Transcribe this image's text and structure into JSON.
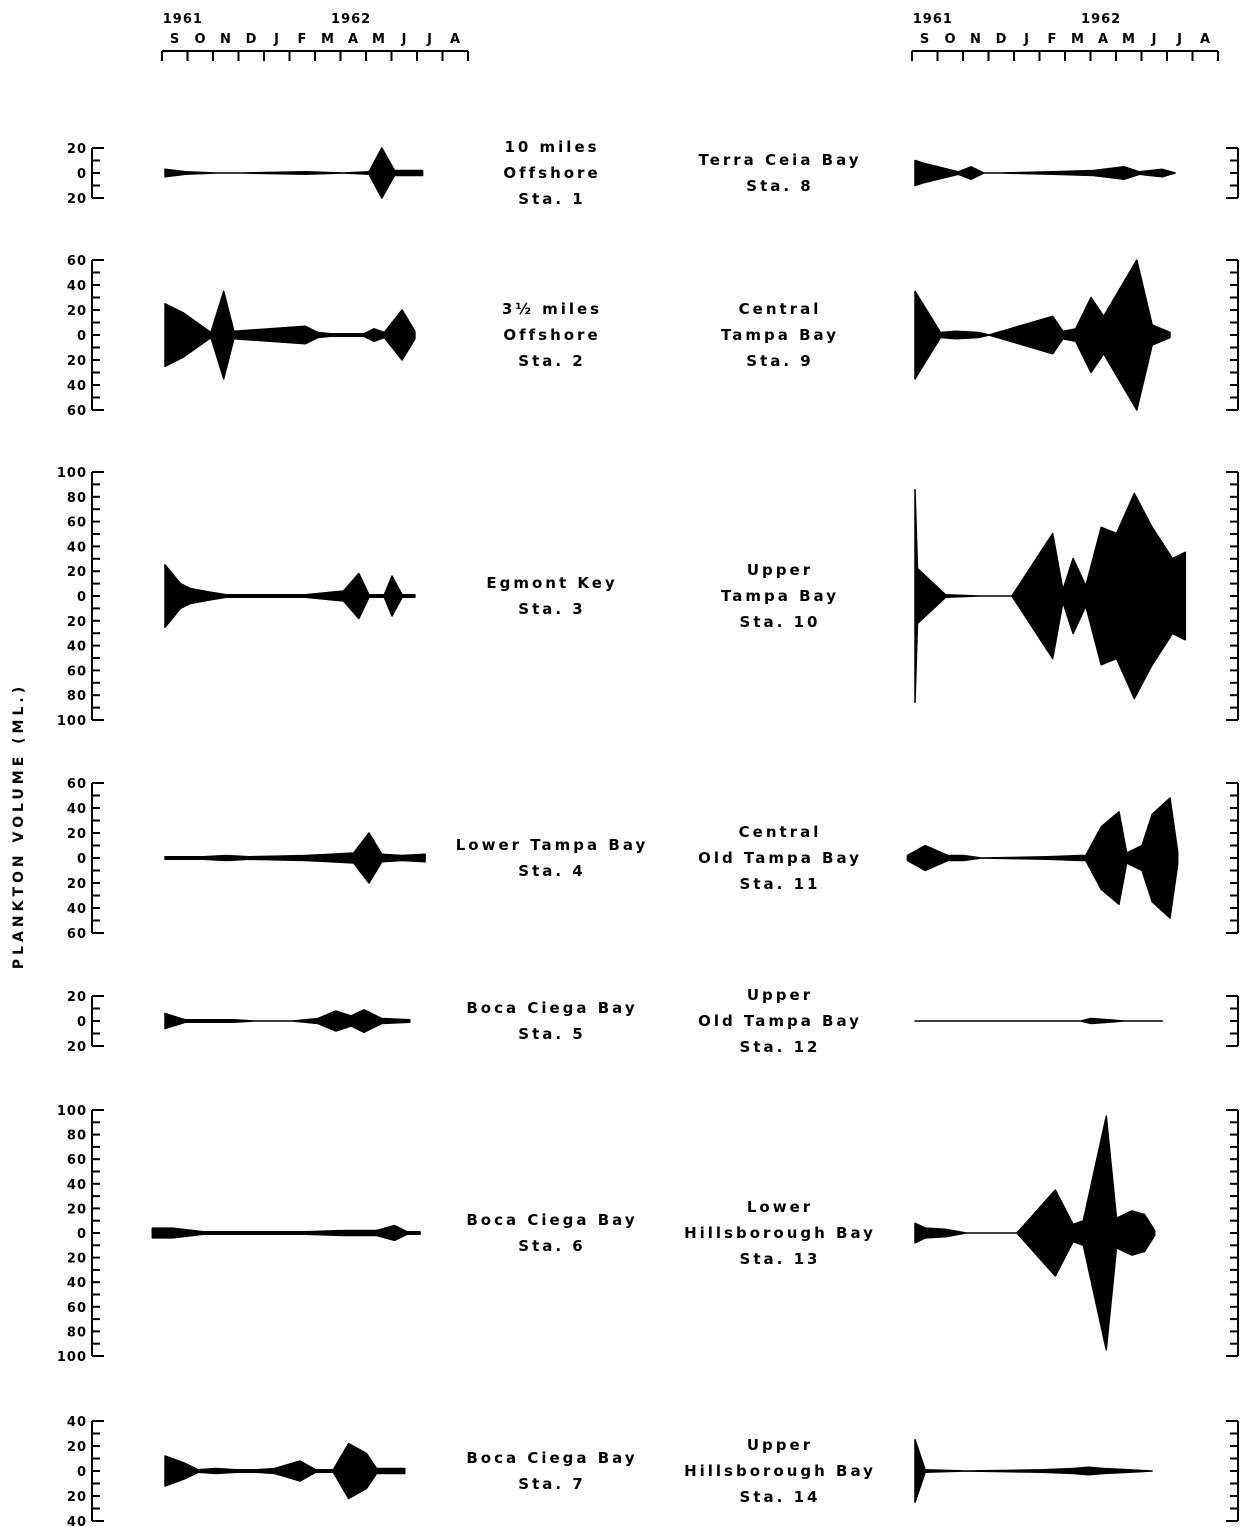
{
  "chart_data": {
    "type": "area",
    "title": "",
    "ylabel": "PLANKTON VOLUME (ML.)",
    "x_years": [
      "1961",
      "1962"
    ],
    "x_months": [
      "S",
      "O",
      "N",
      "D",
      "J",
      "F",
      "M",
      "A",
      "M",
      "J",
      "J",
      "A"
    ],
    "stations": [
      {
        "lines": [
          "10 miles",
          "Offshore",
          "Sta. 1"
        ],
        "scale": 20,
        "ticks": [
          "20",
          "0",
          "20"
        ],
        "points": [
          [
            0,
            3
          ],
          [
            0.8,
            1
          ],
          [
            2,
            0
          ],
          [
            3,
            0
          ],
          [
            5.5,
            1
          ],
          [
            7,
            0
          ],
          [
            8,
            1
          ],
          [
            8.5,
            20
          ],
          [
            9,
            2
          ],
          [
            10.1,
            2
          ]
        ]
      },
      {
        "lines": [
          "3½ miles",
          "Offshore",
          "Sta. 2"
        ],
        "scale": 60,
        "ticks": [
          "60",
          "40",
          "20",
          "0",
          "20",
          "40",
          "60"
        ],
        "points": [
          [
            0,
            25
          ],
          [
            0.7,
            18
          ],
          [
            1.8,
            2
          ],
          [
            2.3,
            35
          ],
          [
            2.7,
            3
          ],
          [
            3.4,
            4
          ],
          [
            5.5,
            7
          ],
          [
            6,
            2
          ],
          [
            6.5,
            1
          ],
          [
            7.8,
            1
          ],
          [
            8.2,
            5
          ],
          [
            8.6,
            2
          ],
          [
            9.3,
            20
          ],
          [
            9.8,
            3
          ]
        ]
      },
      {
        "lines": [
          "Egmont Key",
          "Sta. 3"
        ],
        "scale": 100,
        "ticks": [
          "100",
          "80",
          "60",
          "40",
          "20",
          "0",
          "20",
          "40",
          "60",
          "80",
          "100"
        ],
        "points": [
          [
            0,
            25
          ],
          [
            0.6,
            10
          ],
          [
            1,
            6
          ],
          [
            1.8,
            3
          ],
          [
            2.4,
            1
          ],
          [
            3.2,
            1
          ],
          [
            5.5,
            1
          ],
          [
            7,
            4
          ],
          [
            7.6,
            18
          ],
          [
            8,
            1
          ],
          [
            8.6,
            1
          ],
          [
            8.9,
            16
          ],
          [
            9.3,
            1
          ],
          [
            9.8,
            1
          ]
        ]
      },
      {
        "lines": [
          "Lower Tampa Bay",
          "Sta. 4"
        ],
        "scale": 60,
        "ticks": [
          "60",
          "40",
          "20",
          "0",
          "20",
          "40",
          "60"
        ],
        "points": [
          [
            0,
            1
          ],
          [
            1.5,
            1
          ],
          [
            2.4,
            2
          ],
          [
            3.3,
            1
          ],
          [
            5.5,
            2
          ],
          [
            6.5,
            3
          ],
          [
            7.4,
            4
          ],
          [
            8,
            20
          ],
          [
            8.5,
            3
          ],
          [
            9.3,
            2
          ],
          [
            10.2,
            3
          ]
        ]
      },
      {
        "lines": [
          "Boca Ciega Bay",
          "Sta. 5"
        ],
        "scale": 20,
        "ticks": [
          "20",
          "0",
          "20"
        ],
        "points": [
          [
            0,
            6
          ],
          [
            0.8,
            1
          ],
          [
            1.8,
            1
          ],
          [
            2.7,
            1
          ],
          [
            3.5,
            0
          ],
          [
            5,
            0
          ],
          [
            6,
            2
          ],
          [
            6.7,
            8
          ],
          [
            7.3,
            4
          ],
          [
            7.8,
            9
          ],
          [
            8.5,
            2
          ],
          [
            9.6,
            1
          ]
        ]
      },
      {
        "lines": [
          "Boca Ciega Bay",
          "Sta. 6"
        ],
        "scale": 100,
        "ticks": [
          "100",
          "80",
          "60",
          "40",
          "20",
          "0",
          "20",
          "40",
          "60",
          "80",
          "100"
        ],
        "points": [
          [
            -0.5,
            4
          ],
          [
            0.3,
            4
          ],
          [
            1.5,
            1
          ],
          [
            2.5,
            1
          ],
          [
            3,
            1
          ],
          [
            5.5,
            1
          ],
          [
            7,
            2
          ],
          [
            8.3,
            2
          ],
          [
            9,
            6
          ],
          [
            9.5,
            1
          ],
          [
            10,
            1
          ]
        ]
      },
      {
        "lines": [
          "Boca Ciega Bay",
          "Sta. 7"
        ],
        "scale": 40,
        "ticks": [
          "40",
          "20",
          "0",
          "20",
          "40"
        ],
        "points": [
          [
            0,
            12
          ],
          [
            0.8,
            6
          ],
          [
            1.3,
            1
          ],
          [
            2,
            2
          ],
          [
            2.8,
            1
          ],
          [
            3.6,
            1
          ],
          [
            4.3,
            2
          ],
          [
            5.3,
            8
          ],
          [
            5.9,
            1
          ],
          [
            6.6,
            1
          ],
          [
            7.2,
            22
          ],
          [
            7.9,
            14
          ],
          [
            8.3,
            2
          ],
          [
            9.4,
            2
          ]
        ]
      },
      {
        "lines": [
          "Terra Ceia Bay",
          "Sta. 8"
        ],
        "scale": 20,
        "ticks": [],
        "points": [
          [
            0,
            10
          ],
          [
            0.3,
            8
          ],
          [
            1.7,
            1
          ],
          [
            2.2,
            5
          ],
          [
            2.7,
            0
          ],
          [
            3.4,
            0
          ],
          [
            5.4,
            1
          ],
          [
            7,
            2
          ],
          [
            8.2,
            5
          ],
          [
            8.8,
            1
          ],
          [
            9.7,
            3
          ],
          [
            10.2,
            0
          ]
        ]
      },
      {
        "lines": [
          "Central",
          "Tampa Bay",
          "Sta. 9"
        ],
        "scale": 60,
        "ticks": [],
        "points": [
          [
            0,
            35
          ],
          [
            1,
            2
          ],
          [
            1.6,
            3
          ],
          [
            2.5,
            2
          ],
          [
            2.9,
            0
          ],
          [
            5.4,
            15
          ],
          [
            5.8,
            3
          ],
          [
            6.3,
            5
          ],
          [
            6.9,
            30
          ],
          [
            7.4,
            15
          ],
          [
            8.7,
            60
          ],
          [
            9.3,
            8
          ],
          [
            10,
            2
          ]
        ]
      },
      {
        "lines": [
          "Upper",
          "Tampa Bay",
          "Sta. 10"
        ],
        "scale": 100,
        "ticks": [],
        "points": [
          [
            0,
            85
          ],
          [
            0.1,
            22
          ],
          [
            1.2,
            1
          ],
          [
            2.5,
            0
          ],
          [
            3.8,
            0
          ],
          [
            5.4,
            50
          ],
          [
            5.8,
            5
          ],
          [
            6.2,
            30
          ],
          [
            6.7,
            8
          ],
          [
            7.3,
            55
          ],
          [
            7.9,
            50
          ],
          [
            8.6,
            82
          ],
          [
            9.3,
            55
          ],
          [
            10.1,
            30
          ],
          [
            10.6,
            35
          ],
          [
            10.6,
            1
          ]
        ]
      },
      {
        "lines": [
          "Central",
          "Old Tampa Bay",
          "Sta. 11"
        ],
        "scale": 60,
        "ticks": [],
        "points": [
          [
            -0.3,
            2
          ],
          [
            0.4,
            10
          ],
          [
            1.3,
            2
          ],
          [
            1.9,
            2
          ],
          [
            2.6,
            0
          ],
          [
            5.2,
            1
          ],
          [
            6.5,
            2
          ],
          [
            6.7,
            2
          ],
          [
            7.3,
            25
          ],
          [
            8,
            37
          ],
          [
            8.3,
            4
          ],
          [
            8.9,
            10
          ],
          [
            9.3,
            35
          ],
          [
            10,
            48
          ],
          [
            10.3,
            5
          ]
        ]
      },
      {
        "lines": [
          "Upper",
          "Old Tampa Bay",
          "Sta. 12"
        ],
        "scale": 20,
        "ticks": [],
        "points": [
          [
            0,
            0
          ],
          [
            6.5,
            0
          ],
          [
            6.9,
            2
          ],
          [
            7.6,
            1
          ],
          [
            8.2,
            0
          ],
          [
            9.7,
            0
          ]
        ]
      },
      {
        "lines": [
          "Lower",
          "Hillsborough Bay",
          "Sta. 13"
        ],
        "scale": 100,
        "ticks": [],
        "points": [
          [
            0,
            8
          ],
          [
            0.4,
            4
          ],
          [
            1.2,
            3
          ],
          [
            2,
            0
          ],
          [
            4,
            0
          ],
          [
            5.5,
            35
          ],
          [
            6.2,
            7
          ],
          [
            6.6,
            10
          ],
          [
            7.5,
            95
          ],
          [
            7.9,
            12
          ],
          [
            8.5,
            18
          ],
          [
            9,
            15
          ],
          [
            9.4,
            2
          ]
        ]
      },
      {
        "lines": [
          "Upper",
          "Hillsborough Bay",
          "Sta. 14"
        ],
        "scale": 40,
        "ticks": [],
        "points": [
          [
            0,
            25
          ],
          [
            0.4,
            1
          ],
          [
            2,
            0
          ],
          [
            5,
            1
          ],
          [
            6.2,
            2
          ],
          [
            6.8,
            3
          ],
          [
            7.4,
            2
          ],
          [
            8.4,
            1
          ],
          [
            9.3,
            0
          ]
        ]
      }
    ]
  }
}
